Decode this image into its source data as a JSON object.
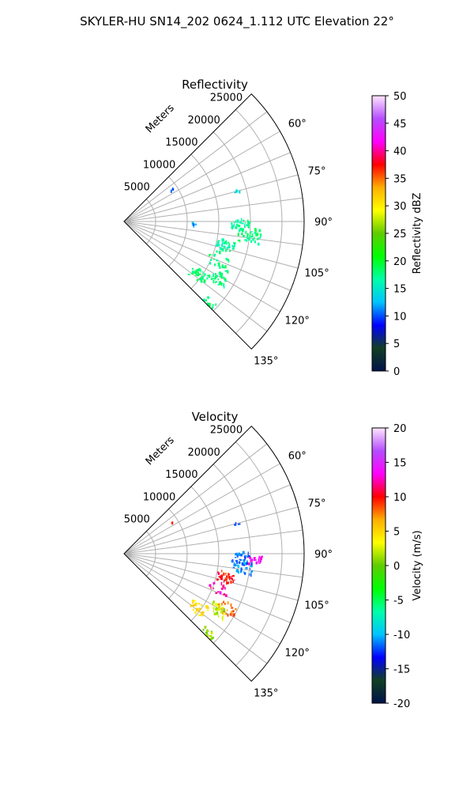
{
  "suptitle": "SKYLER-HU  SN14_202  0624_1.112 UTC Elevation 22°",
  "chart_data": [
    {
      "type": "polar-sector",
      "title": "Reflectivity",
      "range_label": "Meters",
      "range_ticks": [
        5000,
        10000,
        15000,
        20000,
        25000
      ],
      "range_lim": [
        0,
        28500
      ],
      "azimuth_ticks": [
        "60°",
        "75°",
        "90°",
        "105°",
        "120°",
        "135°"
      ],
      "azimuth_tick_values": [
        60,
        75,
        90,
        105,
        120,
        135
      ],
      "azimuth_lim": [
        45,
        135
      ],
      "colorbar": {
        "label": "Reflectivity dBZ",
        "ticks": [
          0,
          5,
          10,
          15,
          20,
          25,
          30,
          35,
          40,
          45,
          50
        ],
        "min": 0,
        "max": 50,
        "stops": [
          "#00134a",
          "#123f24",
          "#0000ff",
          "#00c4ff",
          "#00ffa8",
          "#00ff00",
          "#5fcc00",
          "#ffff00",
          "#ffae00",
          "#ff0000",
          "#ff00ff",
          "#b54dff",
          "#ffe6ff"
        ]
      },
      "echoes": [
        {
          "az": 91.5,
          "r": 18500,
          "value": 17,
          "spread": 1500,
          "count": 30
        },
        {
          "az": 96.5,
          "r": 20000,
          "value": 18,
          "spread": 1800,
          "count": 45
        },
        {
          "az": 103,
          "r": 16500,
          "value": 17,
          "spread": 1500,
          "count": 40
        },
        {
          "az": 112,
          "r": 16500,
          "value": 18,
          "spread": 2000,
          "count": 25
        },
        {
          "az": 121,
          "r": 17500,
          "value": 18,
          "spread": 1500,
          "count": 35
        },
        {
          "az": 126,
          "r": 14500,
          "value": 18,
          "spread": 1500,
          "count": 30
        },
        {
          "az": 134,
          "r": 18500,
          "value": 18,
          "spread": 1200,
          "count": 20
        },
        {
          "az": 75,
          "r": 18500,
          "value": 15,
          "spread": 400,
          "count": 4
        },
        {
          "az": 57,
          "r": 9000,
          "value": 11,
          "spread": 300,
          "count": 3
        },
        {
          "az": 93,
          "r": 11000,
          "value": 12,
          "spread": 500,
          "count": 4
        }
      ]
    },
    {
      "type": "polar-sector",
      "title": "Velocity",
      "range_label": "Meters",
      "range_ticks": [
        5000,
        10000,
        15000,
        20000,
        25000
      ],
      "range_lim": [
        0,
        28500
      ],
      "azimuth_ticks": [
        "60°",
        "75°",
        "90°",
        "105°",
        "120°",
        "135°"
      ],
      "azimuth_tick_values": [
        60,
        75,
        90,
        105,
        120,
        135
      ],
      "azimuth_lim": [
        45,
        135
      ],
      "colorbar": {
        "label": "Velocity (m/s)",
        "ticks": [
          -20,
          -15,
          -10,
          -5,
          0,
          5,
          10,
          15,
          20
        ],
        "min": -20,
        "max": 20,
        "stops": [
          "#00134a",
          "#123f24",
          "#0000ff",
          "#00c4ff",
          "#00ffa8",
          "#00ff00",
          "#5fcc00",
          "#ffff00",
          "#ffae00",
          "#ff0000",
          "#ff00ff",
          "#b54dff",
          "#ffe6ff"
        ]
      },
      "echoes": [
        {
          "az": 92,
          "r": 18500,
          "value": -12,
          "spread": 1500,
          "count": 25
        },
        {
          "az": 93,
          "r": 21000,
          "value": 14,
          "spread": 1200,
          "count": 20
        },
        {
          "az": 97,
          "r": 19000,
          "value": -11,
          "spread": 1500,
          "count": 30
        },
        {
          "az": 103,
          "r": 16500,
          "value": 10,
          "spread": 1500,
          "count": 35
        },
        {
          "az": 110,
          "r": 16000,
          "value": 12,
          "spread": 1500,
          "count": 15
        },
        {
          "az": 118,
          "r": 18500,
          "value": 8,
          "spread": 1500,
          "count": 20
        },
        {
          "az": 121,
          "r": 17500,
          "value": 2,
          "spread": 1500,
          "count": 30
        },
        {
          "az": 126,
          "r": 14500,
          "value": 5,
          "spread": 1500,
          "count": 30
        },
        {
          "az": 134,
          "r": 18500,
          "value": 1,
          "spread": 1200,
          "count": 20
        },
        {
          "az": 75,
          "r": 18500,
          "value": -12,
          "spread": 400,
          "count": 4
        },
        {
          "az": 57,
          "r": 9000,
          "value": 10,
          "spread": 300,
          "count": 2
        }
      ]
    }
  ]
}
